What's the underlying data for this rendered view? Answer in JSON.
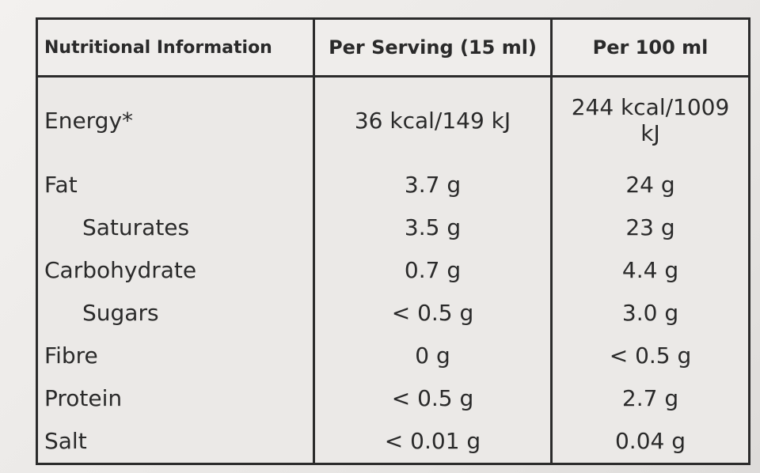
{
  "table": {
    "header": [
      "Nutritional Information",
      "Per Serving (15 ml)",
      "Per 100 ml"
    ],
    "rows": [
      [
        "Energy*",
        "36 kcal/149 kJ",
        "244 kcal/1009 kJ"
      ],
      [
        "Fat",
        "3.7 g",
        "24 g"
      ],
      [
        "Saturates",
        "3.5 g",
        "23 g"
      ],
      [
        "Carbohydrate",
        "0.7 g",
        "4.4 g"
      ],
      [
        "Sugars",
        "< 0.5 g",
        "3.0 g"
      ],
      [
        "Fibre",
        "0 g",
        "< 0.5 g"
      ],
      [
        "Protein",
        "< 0.5 g",
        "2.7 g"
      ],
      [
        "Salt",
        "< 0.01 g",
        "0.04 g"
      ]
    ]
  }
}
